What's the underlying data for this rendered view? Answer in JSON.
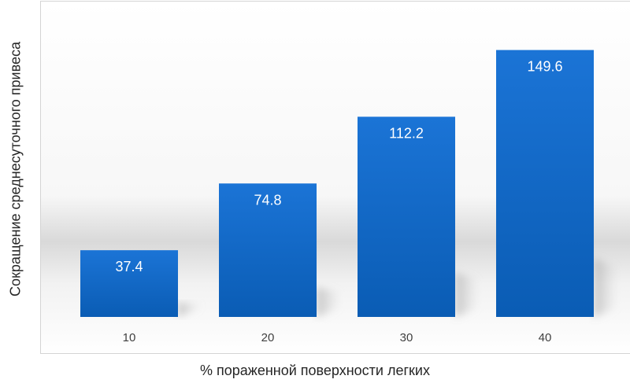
{
  "chart_data": {
    "type": "bar",
    "title": "",
    "xlabel": "% пораженной поверхности легких",
    "ylabel": "Сокращение среднесуточного привеса",
    "categories": [
      "10",
      "20",
      "30",
      "40"
    ],
    "values": [
      37.4,
      74.8,
      112.2,
      149.6
    ],
    "value_labels": [
      "37.4",
      "74.8",
      "112.2",
      "149.6"
    ],
    "ylim": [
      0,
      160
    ],
    "grid": false,
    "legend": "none",
    "bar_color": "#1a6fd0"
  }
}
